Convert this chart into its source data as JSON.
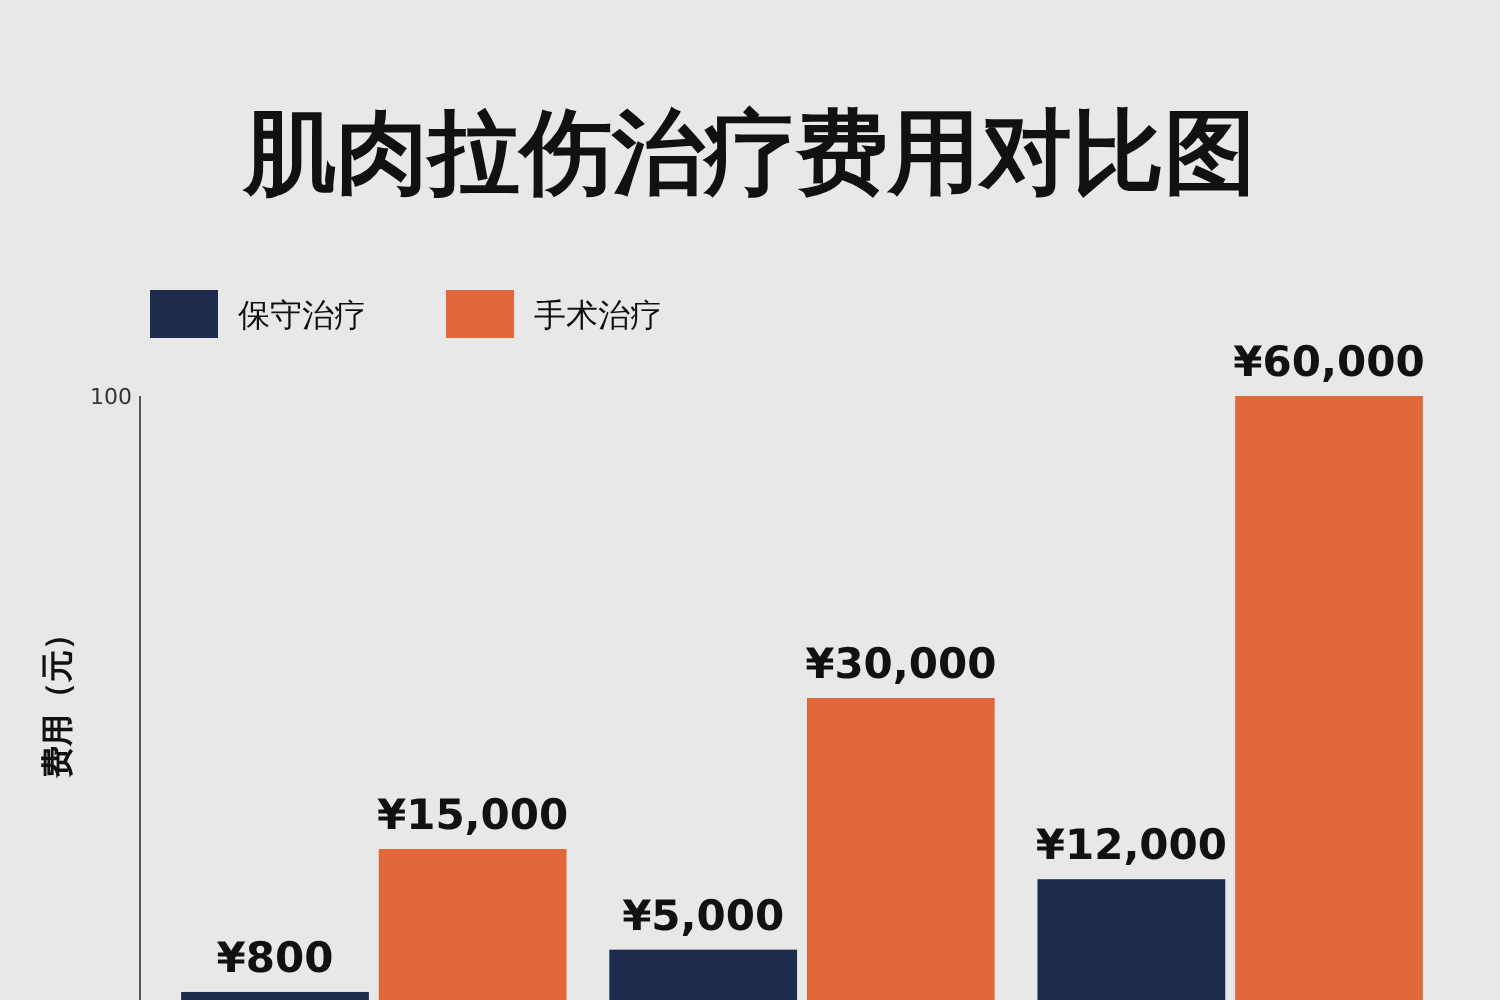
{
  "chart_data": {
    "type": "bar",
    "title": "肌肉拉伤治疗费用对比图",
    "ylabel": "费用（元）",
    "categories": [
      null,
      null,
      null
    ],
    "series": [
      {
        "name": "保守治疗",
        "color": "#1d2b4c",
        "values": [
          800,
          5000,
          12000
        ],
        "value_labels": [
          "¥800",
          "¥5,000",
          "¥12,000"
        ]
      },
      {
        "name": "手术治疗",
        "color": "#e0683a",
        "values": [
          15000,
          30000,
          60000
        ],
        "value_labels": [
          "¥15,000",
          "¥30,000",
          "¥60,000"
        ]
      }
    ],
    "ylim": [
      0,
      60000
    ],
    "annotations": [
      "100"
    ],
    "legend": "top left",
    "grid": false
  }
}
